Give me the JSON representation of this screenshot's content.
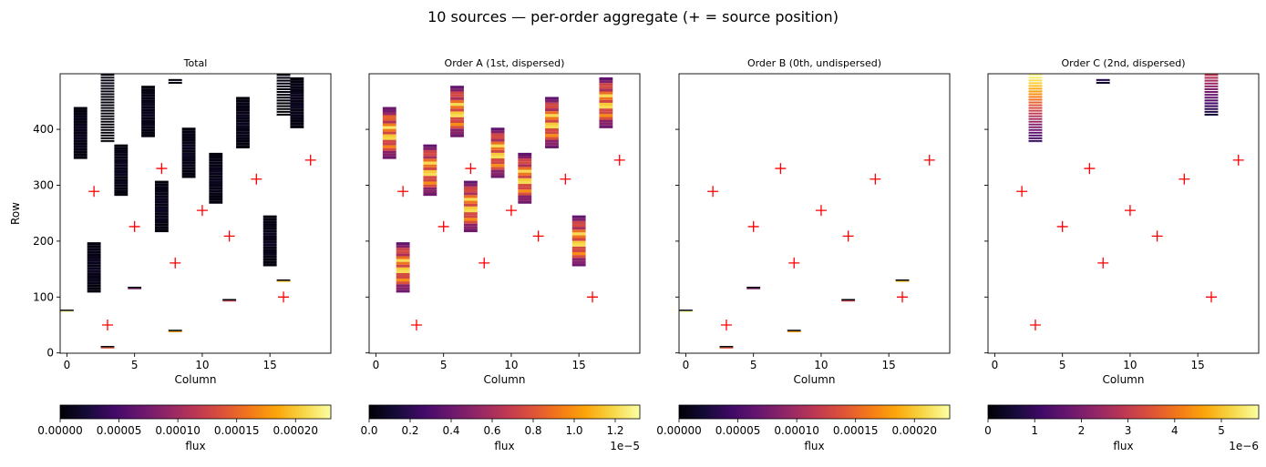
{
  "figure": {
    "suptitle": "10 sources — per-order aggregate  (+ = source position)"
  },
  "chart_data": [
    {
      "type": "heatmap",
      "title": "Total",
      "xlabel": "Column",
      "ylabel": "Row",
      "xlim": [
        -0.5,
        19.5
      ],
      "ylim": [
        -0.5,
        499.5
      ],
      "xticks": [
        "0",
        "5",
        "10",
        "15"
      ],
      "xtick_values": [
        0,
        5,
        10,
        15
      ],
      "yticks": [
        "0",
        "100",
        "200",
        "300",
        "400"
      ],
      "ytick_values": [
        0,
        100,
        200,
        300,
        400
      ],
      "colormap": "inferno",
      "colorbar": {
        "label": "flux",
        "min": 0,
        "max": 0.00023,
        "ticks": [
          "0.00000",
          "0.00005",
          "0.00010",
          "0.00015",
          "0.00020"
        ],
        "tick_values": [
          0,
          5e-05,
          0.0001,
          0.00015,
          0.0002
        ],
        "offset": ""
      },
      "blocks": [
        {
          "col": 1,
          "r0": 347,
          "r1": 440,
          "vmax": 1.3e-05
        },
        {
          "col": 2,
          "r0": 108,
          "r1": 198,
          "vmax": 1.3e-05
        },
        {
          "col": 3,
          "r0": 376,
          "r1": 499,
          "vmax": 6e-06,
          "striped": true
        },
        {
          "col": 4,
          "r0": 281,
          "r1": 373,
          "vmax": 1.3e-05
        },
        {
          "col": 6,
          "r0": 386,
          "r1": 478,
          "vmax": 1.3e-05
        },
        {
          "col": 7,
          "r0": 216,
          "r1": 308,
          "vmax": 1.3e-05
        },
        {
          "col": 8,
          "r0": 480,
          "r1": 490,
          "vmax": 6e-06,
          "striped": true
        },
        {
          "col": 9,
          "r0": 313,
          "r1": 403,
          "vmax": 1.3e-05
        },
        {
          "col": 11,
          "r0": 267,
          "r1": 358,
          "vmax": 1.3e-05
        },
        {
          "col": 13,
          "r0": 366,
          "r1": 458,
          "vmax": 1.3e-05
        },
        {
          "col": 15,
          "r0": 155,
          "r1": 246,
          "vmax": 1.3e-05
        },
        {
          "col": 16,
          "r0": 423,
          "r1": 499,
          "vmax": 6e-06,
          "striped": true
        },
        {
          "col": 17,
          "r0": 402,
          "r1": 493,
          "vmax": 1.3e-05
        }
      ],
      "bars": [
        {
          "col": 0,
          "row": 75,
          "value": 0.00023
        },
        {
          "col": 3,
          "row": 10,
          "value": 0.00014
        },
        {
          "col": 5,
          "row": 116,
          "value": 8e-05
        },
        {
          "col": 8,
          "row": 39,
          "value": 0.00018
        },
        {
          "col": 12,
          "row": 94,
          "value": 0.00012
        },
        {
          "col": 16,
          "row": 129,
          "value": 0.0002
        }
      ],
      "sources": [
        {
          "x": 2,
          "y": 289
        },
        {
          "x": 3,
          "y": 50
        },
        {
          "x": 5,
          "y": 226
        },
        {
          "x": 7,
          "y": 330
        },
        {
          "x": 8,
          "y": 161
        },
        {
          "x": 10,
          "y": 255
        },
        {
          "x": 12,
          "y": 209
        },
        {
          "x": 14,
          "y": 311
        },
        {
          "x": 16,
          "y": 100
        },
        {
          "x": 18,
          "y": 345
        }
      ]
    },
    {
      "type": "heatmap",
      "title": "Order A (1st, dispersed)",
      "xlabel": "Column",
      "ylabel": "",
      "xlim": [
        -0.5,
        19.5
      ],
      "ylim": [
        -0.5,
        499.5
      ],
      "xticks": [
        "0",
        "5",
        "10",
        "15"
      ],
      "xtick_values": [
        0,
        5,
        10,
        15
      ],
      "yticks": [],
      "ytick_values": [
        0,
        100,
        200,
        300,
        400
      ],
      "colormap": "inferno",
      "colorbar": {
        "label": "flux",
        "min": 0,
        "max": 1.32e-05,
        "ticks": [
          "0.0",
          "0.2",
          "0.4",
          "0.6",
          "0.8",
          "1.0",
          "1.2"
        ],
        "tick_values": [
          0,
          2e-06,
          4e-06,
          6e-06,
          8e-06,
          1e-05,
          1.2e-05
        ],
        "offset": "1e−5"
      },
      "blocks": [
        {
          "col": 1,
          "r0": 347,
          "r1": 440,
          "vmax": 1.3e-05
        },
        {
          "col": 2,
          "r0": 108,
          "r1": 198,
          "vmax": 1.3e-05
        },
        {
          "col": 4,
          "r0": 281,
          "r1": 373,
          "vmax": 1.3e-05
        },
        {
          "col": 6,
          "r0": 386,
          "r1": 478,
          "vmax": 1.3e-05
        },
        {
          "col": 7,
          "r0": 216,
          "r1": 308,
          "vmax": 1.3e-05
        },
        {
          "col": 9,
          "r0": 313,
          "r1": 403,
          "vmax": 1.3e-05
        },
        {
          "col": 11,
          "r0": 267,
          "r1": 358,
          "vmax": 1.3e-05
        },
        {
          "col": 13,
          "r0": 366,
          "r1": 458,
          "vmax": 1.3e-05
        },
        {
          "col": 15,
          "r0": 155,
          "r1": 246,
          "vmax": 1.3e-05
        },
        {
          "col": 17,
          "r0": 402,
          "r1": 493,
          "vmax": 1.3e-05
        }
      ],
      "bars": [],
      "sources": [
        {
          "x": 2,
          "y": 289
        },
        {
          "x": 3,
          "y": 50
        },
        {
          "x": 5,
          "y": 226
        },
        {
          "x": 7,
          "y": 330
        },
        {
          "x": 8,
          "y": 161
        },
        {
          "x": 10,
          "y": 255
        },
        {
          "x": 12,
          "y": 209
        },
        {
          "x": 14,
          "y": 311
        },
        {
          "x": 16,
          "y": 100
        },
        {
          "x": 18,
          "y": 345
        }
      ]
    },
    {
      "type": "heatmap",
      "title": "Order B (0th, undispersed)",
      "xlabel": "Column",
      "ylabel": "",
      "xlim": [
        -0.5,
        19.5
      ],
      "ylim": [
        -0.5,
        499.5
      ],
      "xticks": [
        "0",
        "5",
        "10",
        "15"
      ],
      "xtick_values": [
        0,
        5,
        10,
        15
      ],
      "yticks": [],
      "ytick_values": [
        0,
        100,
        200,
        300,
        400
      ],
      "colormap": "inferno",
      "colorbar": {
        "label": "flux",
        "min": 0,
        "max": 0.00023,
        "ticks": [
          "0.00000",
          "0.00005",
          "0.00010",
          "0.00015",
          "0.00020"
        ],
        "tick_values": [
          0,
          5e-05,
          0.0001,
          0.00015,
          0.0002
        ],
        "offset": ""
      },
      "blocks": [],
      "bars": [
        {
          "col": 0,
          "row": 75,
          "value": 0.00023
        },
        {
          "col": 3,
          "row": 10,
          "value": 0.00014
        },
        {
          "col": 5,
          "row": 116,
          "value": 8e-05
        },
        {
          "col": 8,
          "row": 39,
          "value": 0.00018
        },
        {
          "col": 12,
          "row": 94,
          "value": 0.00012
        },
        {
          "col": 16,
          "row": 129,
          "value": 0.0002
        }
      ],
      "sources": [
        {
          "x": 2,
          "y": 289
        },
        {
          "x": 3,
          "y": 50
        },
        {
          "x": 5,
          "y": 226
        },
        {
          "x": 7,
          "y": 330
        },
        {
          "x": 8,
          "y": 161
        },
        {
          "x": 10,
          "y": 255
        },
        {
          "x": 12,
          "y": 209
        },
        {
          "x": 14,
          "y": 311
        },
        {
          "x": 16,
          "y": 100
        },
        {
          "x": 18,
          "y": 345
        }
      ]
    },
    {
      "type": "heatmap",
      "title": "Order C (2nd, dispersed)",
      "xlabel": "Column",
      "ylabel": "",
      "xlim": [
        -0.5,
        19.5
      ],
      "ylim": [
        -0.5,
        499.5
      ],
      "xticks": [
        "0",
        "5",
        "10",
        "15"
      ],
      "xtick_values": [
        0,
        5,
        10,
        15
      ],
      "yticks": [],
      "ytick_values": [
        0,
        100,
        200,
        300,
        400
      ],
      "colormap": "inferno",
      "colorbar": {
        "label": "flux",
        "min": 0,
        "max": 5.8e-06,
        "ticks": [
          "0",
          "1",
          "2",
          "3",
          "4",
          "5"
        ],
        "tick_values": [
          0,
          1e-06,
          2e-06,
          3e-06,
          4e-06,
          5e-06
        ],
        "offset": "1e−6"
      },
      "blocks": [
        {
          "col": 3,
          "r0": 376,
          "r1": 499,
          "vmax": 5.8e-06,
          "striped": true
        },
        {
          "col": 8,
          "r0": 480,
          "r1": 490,
          "vmax": 1e-06,
          "striped": true
        },
        {
          "col": 16,
          "r0": 423,
          "r1": 499,
          "vmax": 3e-06,
          "striped": true
        }
      ],
      "bars": [],
      "sources": [
        {
          "x": 2,
          "y": 289
        },
        {
          "x": 3,
          "y": 50
        },
        {
          "x": 5,
          "y": 226
        },
        {
          "x": 7,
          "y": 330
        },
        {
          "x": 8,
          "y": 161
        },
        {
          "x": 10,
          "y": 255
        },
        {
          "x": 12,
          "y": 209
        },
        {
          "x": 14,
          "y": 311
        },
        {
          "x": 16,
          "y": 100
        },
        {
          "x": 18,
          "y": 345
        }
      ]
    }
  ]
}
